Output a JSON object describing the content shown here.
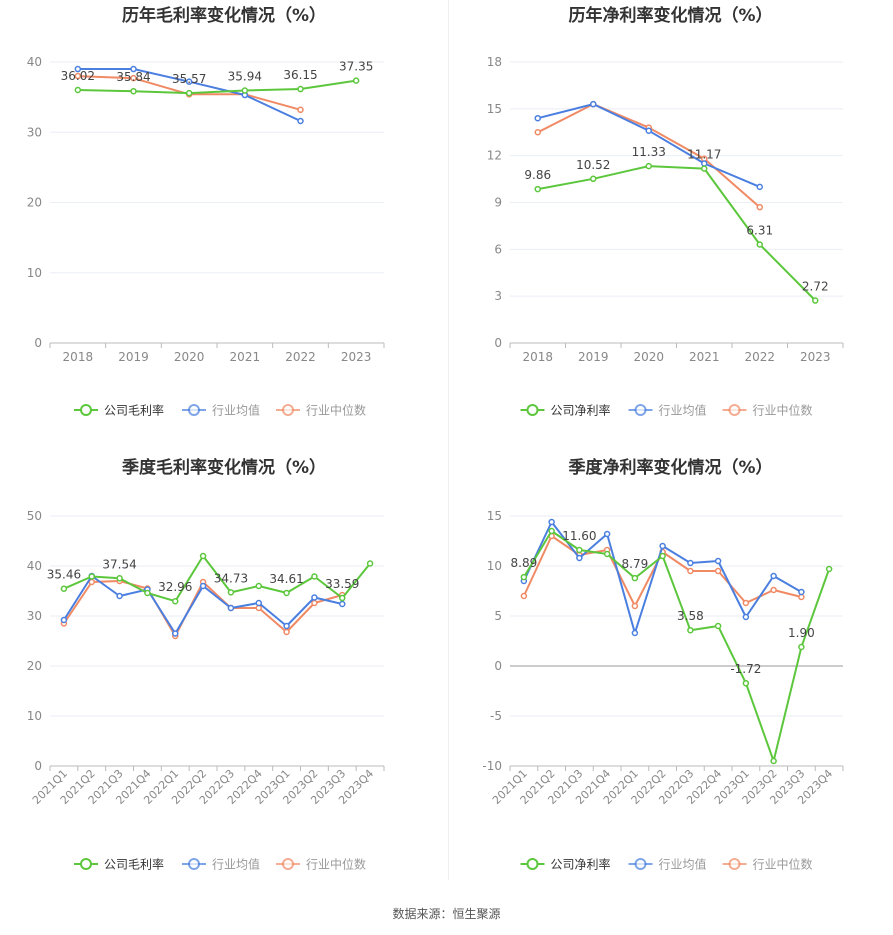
{
  "source_label": "数据来源：恒生聚源",
  "colors": {
    "company": "#5cc73c",
    "industry_avg": "#4a7fe0",
    "industry_median": "#f08a64",
    "axis": "#bbbbbb",
    "grid": "#eaeef6",
    "tick": "#888888",
    "title": "#333333"
  },
  "chart_data": [
    {
      "id": "annual-gross",
      "type": "line",
      "title": "历年毛利率变化情况（%）",
      "categories": [
        "2018",
        "2019",
        "2020",
        "2021",
        "2022",
        "2023"
      ],
      "ylim": [
        0,
        40
      ],
      "yticks": [
        0,
        10,
        20,
        30,
        40
      ],
      "series": [
        {
          "name": "公司毛利率",
          "key": "company",
          "values": [
            36.02,
            35.84,
            35.57,
            35.94,
            36.15,
            37.35
          ],
          "labels": [
            "36.02",
            "35.84",
            "35.57",
            "35.94",
            "36.15",
            "37.35"
          ]
        },
        {
          "name": "行业均值",
          "key": "industry_avg",
          "values": [
            39.0,
            39.0,
            37.2,
            35.3,
            31.6,
            null
          ]
        },
        {
          "name": "行业中位数",
          "key": "industry_median",
          "values": [
            38.0,
            37.7,
            35.4,
            35.4,
            33.2,
            null
          ]
        }
      ]
    },
    {
      "id": "annual-net",
      "type": "line",
      "title": "历年净利率变化情况（%）",
      "categories": [
        "2018",
        "2019",
        "2020",
        "2021",
        "2022",
        "2023"
      ],
      "ylim": [
        0,
        18
      ],
      "yticks": [
        0,
        3,
        6,
        9,
        12,
        15,
        18
      ],
      "series": [
        {
          "name": "公司净利率",
          "key": "company",
          "values": [
            9.86,
            10.52,
            11.33,
            11.17,
            6.31,
            2.72
          ],
          "labels": [
            "9.86",
            "10.52",
            "11.33",
            "11.17",
            "6.31",
            "2.72"
          ]
        },
        {
          "name": "行业均值",
          "key": "industry_avg",
          "values": [
            14.4,
            15.3,
            13.6,
            11.5,
            10.0,
            null
          ]
        },
        {
          "name": "行业中位数",
          "key": "industry_median",
          "values": [
            13.5,
            15.3,
            13.8,
            11.8,
            8.7,
            null
          ]
        }
      ]
    },
    {
      "id": "quarterly-gross",
      "type": "line",
      "title": "季度毛利率变化情况（%）",
      "categories": [
        "2021Q1",
        "2021Q2",
        "2021Q3",
        "2021Q4",
        "2022Q1",
        "2022Q2",
        "2022Q3",
        "2022Q4",
        "2023Q1",
        "2023Q2",
        "2023Q3",
        "2023Q4"
      ],
      "ylim": [
        0,
        50
      ],
      "yticks": [
        0,
        10,
        20,
        30,
        40,
        50
      ],
      "series": [
        {
          "name": "公司毛利率",
          "key": "company",
          "values": [
            35.46,
            37.9,
            37.54,
            34.6,
            32.96,
            42.0,
            34.73,
            36.0,
            34.61,
            37.9,
            33.59,
            40.5
          ],
          "labels": [
            "35.46",
            "",
            "37.54",
            "",
            "32.96",
            "",
            "34.73",
            "",
            "34.61",
            "",
            "33.59",
            ""
          ]
        },
        {
          "name": "行业均值",
          "key": "industry_avg",
          "values": [
            29.2,
            38.0,
            34.0,
            35.3,
            26.5,
            36.0,
            31.6,
            32.6,
            28.0,
            33.7,
            32.4,
            null
          ]
        },
        {
          "name": "行业中位数",
          "key": "industry_median",
          "values": [
            28.5,
            36.8,
            37.0,
            35.5,
            26.0,
            36.8,
            31.6,
            31.6,
            26.8,
            32.6,
            34.2,
            null
          ]
        }
      ]
    },
    {
      "id": "quarterly-net",
      "type": "line",
      "title": "季度净利率变化情况（%）",
      "categories": [
        "2021Q1",
        "2021Q2",
        "2021Q3",
        "2021Q4",
        "2022Q1",
        "2022Q2",
        "2022Q3",
        "2022Q4",
        "2023Q1",
        "2023Q2",
        "2023Q3",
        "2023Q4"
      ],
      "ylim": [
        -10,
        15
      ],
      "yticks": [
        -10,
        -5,
        0,
        5,
        10,
        15
      ],
      "series": [
        {
          "name": "公司净利率",
          "key": "company",
          "values": [
            8.89,
            13.5,
            11.6,
            11.2,
            8.79,
            11.0,
            3.58,
            4.0,
            -1.72,
            -9.5,
            1.9,
            9.7
          ],
          "labels": [
            "8.89",
            "",
            "11.60",
            "",
            "8.79",
            "",
            "3.58",
            "",
            "-1.72",
            "",
            "1.90",
            ""
          ]
        },
        {
          "name": "行业均值",
          "key": "industry_avg",
          "values": [
            8.5,
            14.4,
            10.8,
            13.2,
            3.3,
            12.0,
            10.3,
            10.5,
            4.9,
            9.0,
            7.4,
            null
          ]
        },
        {
          "name": "行业中位数",
          "key": "industry_median",
          "values": [
            7.0,
            13.0,
            11.1,
            11.6,
            6.0,
            11.4,
            9.5,
            9.5,
            6.3,
            7.6,
            6.9,
            null
          ]
        }
      ]
    }
  ]
}
